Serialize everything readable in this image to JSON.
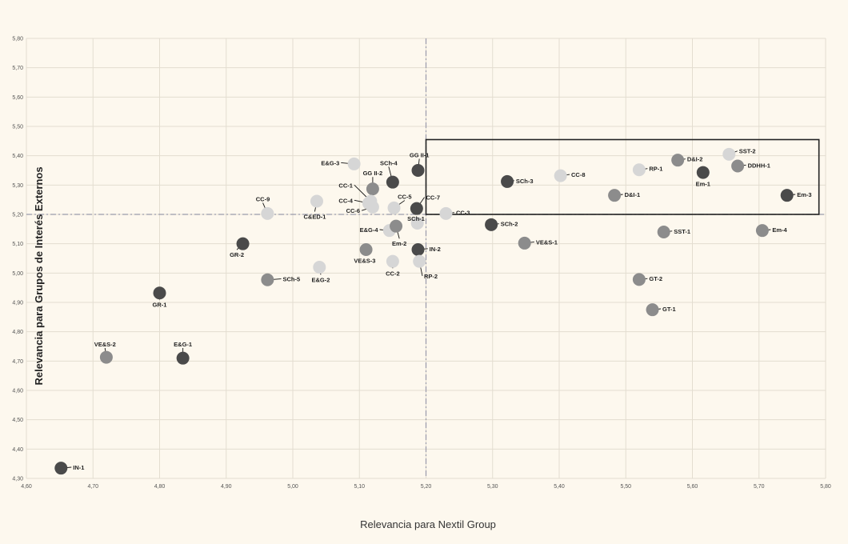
{
  "chart_data": {
    "type": "scatter",
    "xlabel": "Relevancia para Nextil Group",
    "ylabel": "Relevancia para Grupos de Interés Externos",
    "xlim": [
      4.6,
      5.8
    ],
    "ylim": [
      4.3,
      5.8
    ],
    "x_ticks": [
      "4,60",
      "4,70",
      "4,80",
      "4,90",
      "5,00",
      "5,10",
      "5,20",
      "5,30",
      "5,40",
      "5,50",
      "5,60",
      "5,70",
      "5,80"
    ],
    "y_ticks": [
      "4,30",
      "4,40",
      "4,50",
      "4,60",
      "4,70",
      "4,80",
      "4,90",
      "5,00",
      "5,10",
      "5,20",
      "5,30",
      "5,40",
      "5,50",
      "5,60",
      "5,70",
      "5,80"
    ],
    "grid": true,
    "reference_lines": {
      "x": 5.2,
      "y": 5.2
    },
    "highlight_box": {
      "x": [
        5.2,
        5.79
      ],
      "y": [
        5.2,
        5.455
      ]
    },
    "colors": {
      "dark": "#4a4a4a",
      "mid": "#8c8c8c",
      "light": "#d6d6d6",
      "background": "#fdf8ee",
      "grid": "#e3ddd0"
    },
    "points": [
      {
        "label": "IN-1",
        "x": 4.652,
        "y": 4.335,
        "tone": "dark",
        "lx": 4.67,
        "ly": 4.33,
        "anchor": "start"
      },
      {
        "label": "VE&S-2",
        "x": 4.72,
        "y": 4.713,
        "tone": "mid",
        "lx": 4.718,
        "ly": 4.75,
        "anchor": "middle"
      },
      {
        "label": "E&G-1",
        "x": 4.835,
        "y": 4.71,
        "tone": "dark",
        "lx": 4.835,
        "ly": 4.75,
        "anchor": "middle"
      },
      {
        "label": "GR-1",
        "x": 4.8,
        "y": 4.932,
        "tone": "dark",
        "lx": 4.8,
        "ly": 4.885,
        "anchor": "middle"
      },
      {
        "label": "GR-2",
        "x": 4.925,
        "y": 5.1,
        "tone": "dark",
        "lx": 4.916,
        "ly": 5.055,
        "anchor": "middle"
      },
      {
        "label": "SCh-5",
        "x": 4.962,
        "y": 4.977,
        "tone": "mid",
        "lx": 4.985,
        "ly": 4.972,
        "anchor": "start"
      },
      {
        "label": "CC-9",
        "x": 4.962,
        "y": 5.203,
        "tone": "light",
        "lx": 4.955,
        "ly": 5.245,
        "anchor": "middle"
      },
      {
        "label": "E&G-2",
        "x": 5.04,
        "y": 5.02,
        "tone": "light",
        "lx": 5.042,
        "ly": 4.97,
        "anchor": "middle"
      },
      {
        "label": "C&ED-1",
        "x": 5.036,
        "y": 5.245,
        "tone": "light",
        "lx": 5.033,
        "ly": 5.185,
        "anchor": "middle"
      },
      {
        "label": "E&G-3",
        "x": 5.092,
        "y": 5.372,
        "tone": "light",
        "lx": 5.07,
        "ly": 5.368,
        "anchor": "end"
      },
      {
        "label": "GG II-2",
        "x": 5.12,
        "y": 5.287,
        "tone": "mid",
        "lx": 5.12,
        "ly": 5.333,
        "anchor": "middle"
      },
      {
        "label": "CC-1",
        "x": 5.117,
        "y": 5.245,
        "tone": "light",
        "lx": 5.09,
        "ly": 5.292,
        "anchor": "end"
      },
      {
        "label": "CC-4",
        "x": 5.114,
        "y": 5.238,
        "tone": "light",
        "lx": 5.09,
        "ly": 5.24,
        "anchor": "end"
      },
      {
        "label": "CC-6",
        "x": 5.12,
        "y": 5.225,
        "tone": "light",
        "lx": 5.101,
        "ly": 5.205,
        "anchor": "end"
      },
      {
        "label": "SCh-4",
        "x": 5.15,
        "y": 5.31,
        "tone": "dark",
        "lx": 5.144,
        "ly": 5.368,
        "anchor": "middle"
      },
      {
        "label": "CC-5",
        "x": 5.152,
        "y": 5.222,
        "tone": "light",
        "lx": 5.168,
        "ly": 5.253,
        "anchor": "middle"
      },
      {
        "label": "E&G-4",
        "x": 5.145,
        "y": 5.145,
        "tone": "light",
        "lx": 5.128,
        "ly": 5.14,
        "anchor": "end"
      },
      {
        "label": "Em-2",
        "x": 5.155,
        "y": 5.16,
        "tone": "mid",
        "lx": 5.16,
        "ly": 5.093,
        "anchor": "middle"
      },
      {
        "label": "VE&S-3",
        "x": 5.11,
        "y": 5.08,
        "tone": "mid",
        "lx": 5.108,
        "ly": 5.035,
        "anchor": "middle"
      },
      {
        "label": "CC-2",
        "x": 5.15,
        "y": 5.04,
        "tone": "light",
        "lx": 5.15,
        "ly": 4.992,
        "anchor": "middle"
      },
      {
        "label": "GG II-1",
        "x": 5.188,
        "y": 5.35,
        "tone": "dark",
        "lx": 5.19,
        "ly": 5.395,
        "anchor": "middle"
      },
      {
        "label": "CC-7",
        "x": 5.186,
        "y": 5.22,
        "tone": "dark",
        "lx": 5.2,
        "ly": 5.25,
        "anchor": "start"
      },
      {
        "label": "SCh-1",
        "x": 5.187,
        "y": 5.17,
        "tone": "light",
        "lx": 5.185,
        "ly": 5.178,
        "anchor": "middle"
      },
      {
        "label": "IN-2",
        "x": 5.188,
        "y": 5.08,
        "tone": "dark",
        "lx": 5.205,
        "ly": 5.075,
        "anchor": "start"
      },
      {
        "label": "RP-2",
        "x": 5.19,
        "y": 5.04,
        "tone": "light",
        "lx": 5.197,
        "ly": 4.982,
        "anchor": "start"
      },
      {
        "label": "CC-3",
        "x": 5.23,
        "y": 5.203,
        "tone": "light",
        "lx": 5.245,
        "ly": 5.198,
        "anchor": "start"
      },
      {
        "label": "SCh-3",
        "x": 5.322,
        "y": 5.312,
        "tone": "dark",
        "lx": 5.335,
        "ly": 5.307,
        "anchor": "start"
      },
      {
        "label": "SCh-2",
        "x": 5.298,
        "y": 5.165,
        "tone": "dark",
        "lx": 5.312,
        "ly": 5.16,
        "anchor": "start"
      },
      {
        "label": "VE&S-1",
        "x": 5.348,
        "y": 5.102,
        "tone": "mid",
        "lx": 5.365,
        "ly": 5.098,
        "anchor": "start"
      },
      {
        "label": "CC-8",
        "x": 5.402,
        "y": 5.332,
        "tone": "light",
        "lx": 5.418,
        "ly": 5.328,
        "anchor": "start"
      },
      {
        "label": "D&I-1",
        "x": 5.483,
        "y": 5.265,
        "tone": "mid",
        "lx": 5.498,
        "ly": 5.26,
        "anchor": "start"
      },
      {
        "label": "RP-1",
        "x": 5.52,
        "y": 5.352,
        "tone": "light",
        "lx": 5.535,
        "ly": 5.348,
        "anchor": "start"
      },
      {
        "label": "GT-2",
        "x": 5.52,
        "y": 4.978,
        "tone": "mid",
        "lx": 5.535,
        "ly": 4.973,
        "anchor": "start"
      },
      {
        "label": "GT-1",
        "x": 5.54,
        "y": 4.875,
        "tone": "mid",
        "lx": 5.555,
        "ly": 4.87,
        "anchor": "start"
      },
      {
        "label": "SST-1",
        "x": 5.557,
        "y": 5.14,
        "tone": "mid",
        "lx": 5.572,
        "ly": 5.135,
        "anchor": "start"
      },
      {
        "label": "D&I-2",
        "x": 5.578,
        "y": 5.385,
        "tone": "mid",
        "lx": 5.592,
        "ly": 5.381,
        "anchor": "start"
      },
      {
        "label": "Em-1",
        "x": 5.616,
        "y": 5.343,
        "tone": "dark",
        "lx": 5.616,
        "ly": 5.297,
        "anchor": "middle"
      },
      {
        "label": "SST-2",
        "x": 5.655,
        "y": 5.405,
        "tone": "light",
        "lx": 5.67,
        "ly": 5.408,
        "anchor": "start"
      },
      {
        "label": "DDHH-1",
        "x": 5.668,
        "y": 5.365,
        "tone": "mid",
        "lx": 5.683,
        "ly": 5.36,
        "anchor": "start"
      },
      {
        "label": "Em-4",
        "x": 5.705,
        "y": 5.145,
        "tone": "mid",
        "lx": 5.72,
        "ly": 5.14,
        "anchor": "start"
      },
      {
        "label": "Em-3",
        "x": 5.742,
        "y": 5.265,
        "tone": "dark",
        "lx": 5.757,
        "ly": 5.26,
        "anchor": "start"
      }
    ]
  }
}
